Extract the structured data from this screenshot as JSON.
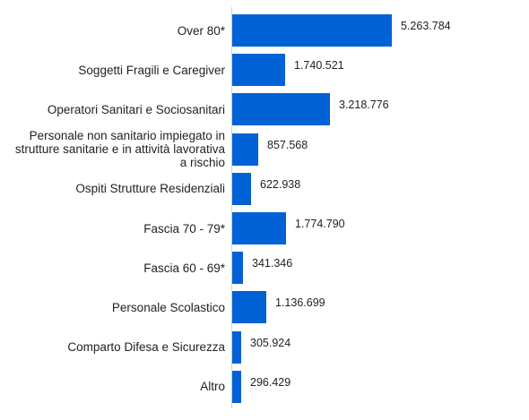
{
  "colors": {
    "bar": "#0062d4"
  },
  "chart_data": {
    "type": "bar",
    "orientation": "horizontal",
    "title": "",
    "xlabel": "",
    "ylabel": "",
    "categories": [
      "Over 80*",
      "Soggetti Fragili e Caregiver",
      "Operatori Sanitari e Sociosanitari",
      "Personale non sanitario impiegato in strutture sanitarie e in attività lavorativa a rischio",
      "Ospiti Strutture Residenziali",
      "Fascia 70 - 79*",
      "Fascia 60 - 69*",
      "Personale Scolastico",
      "Comparto Difesa e Sicurezza",
      "Altro"
    ],
    "values": [
      5263784,
      1740521,
      3218776,
      857568,
      622938,
      1774790,
      341346,
      1136699,
      305924,
      296429
    ],
    "value_labels": [
      "5.263.784",
      "1.740.521",
      "3.218.776",
      "857.568",
      "622.938",
      "1.774.790",
      "341.346",
      "1.136.699",
      "305.924",
      "296.429"
    ],
    "grid": false,
    "legend": "none"
  }
}
